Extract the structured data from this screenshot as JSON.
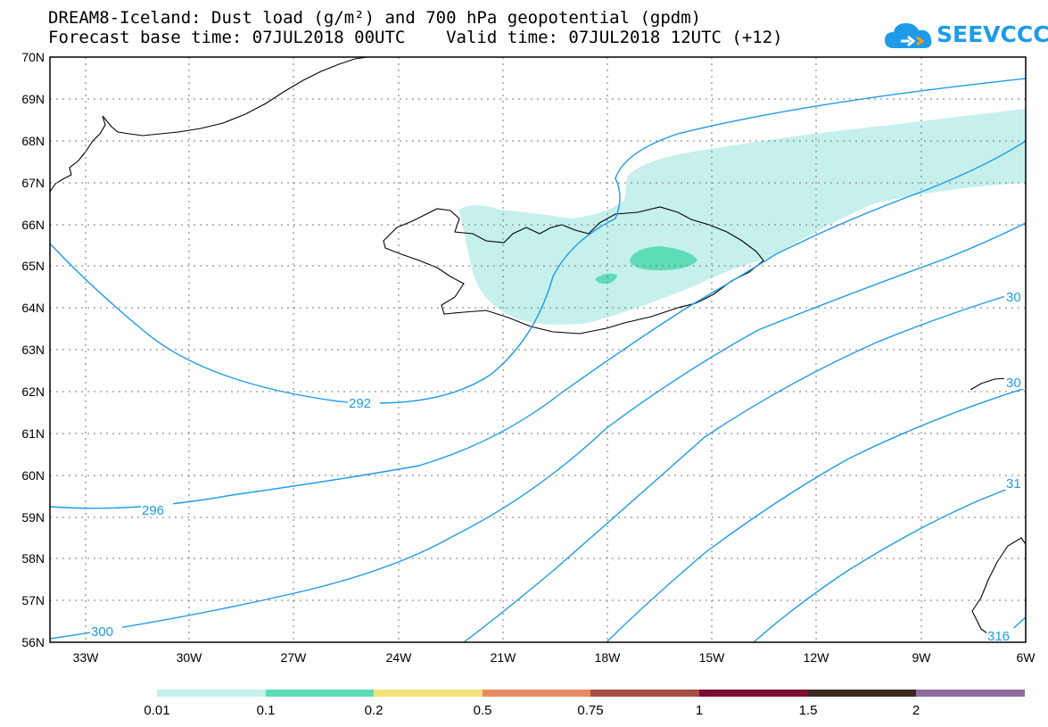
{
  "header": {
    "title_line1": "DREAM8-Iceland: Dust load (g/m²) and 700 hPa geopotential (gpdm)",
    "title_line2": "Forecast base time: 07JUL2018 00UTC    Valid time: 07JUL2018 12UTC (+12)"
  },
  "logo": {
    "text": "SEEVCCC",
    "icon": "cloud-icon"
  },
  "colors": {
    "contour": "#1e9be8",
    "dust_low": "#c6f0ec",
    "dust_mid": "#5ddcb6",
    "coast": "#000000"
  },
  "map": {
    "lat_labels": [
      "70N",
      "69N",
      "68N",
      "67N",
      "66N",
      "65N",
      "64N",
      "63N",
      "62N",
      "61N",
      "60N",
      "59N",
      "58N",
      "57N",
      "56N"
    ],
    "lon_labels": [
      "33W",
      "30W",
      "27W",
      "24W",
      "21W",
      "18W",
      "15W",
      "12W",
      "9W",
      "6W"
    ],
    "contour_labels": [
      "292",
      "296",
      "300",
      "30",
      "30",
      "31",
      "316"
    ]
  },
  "colorbar": {
    "colors": [
      "#c6f0ec",
      "#5ddcb6",
      "#f4e37a",
      "#e98b61",
      "#a54f45",
      "#7c0f31",
      "#3b2a20",
      "#8e6d9e"
    ],
    "labels": [
      "0.01",
      "0.1",
      "0.2",
      "0.5",
      "0.75",
      "1",
      "1.5",
      "2"
    ]
  }
}
